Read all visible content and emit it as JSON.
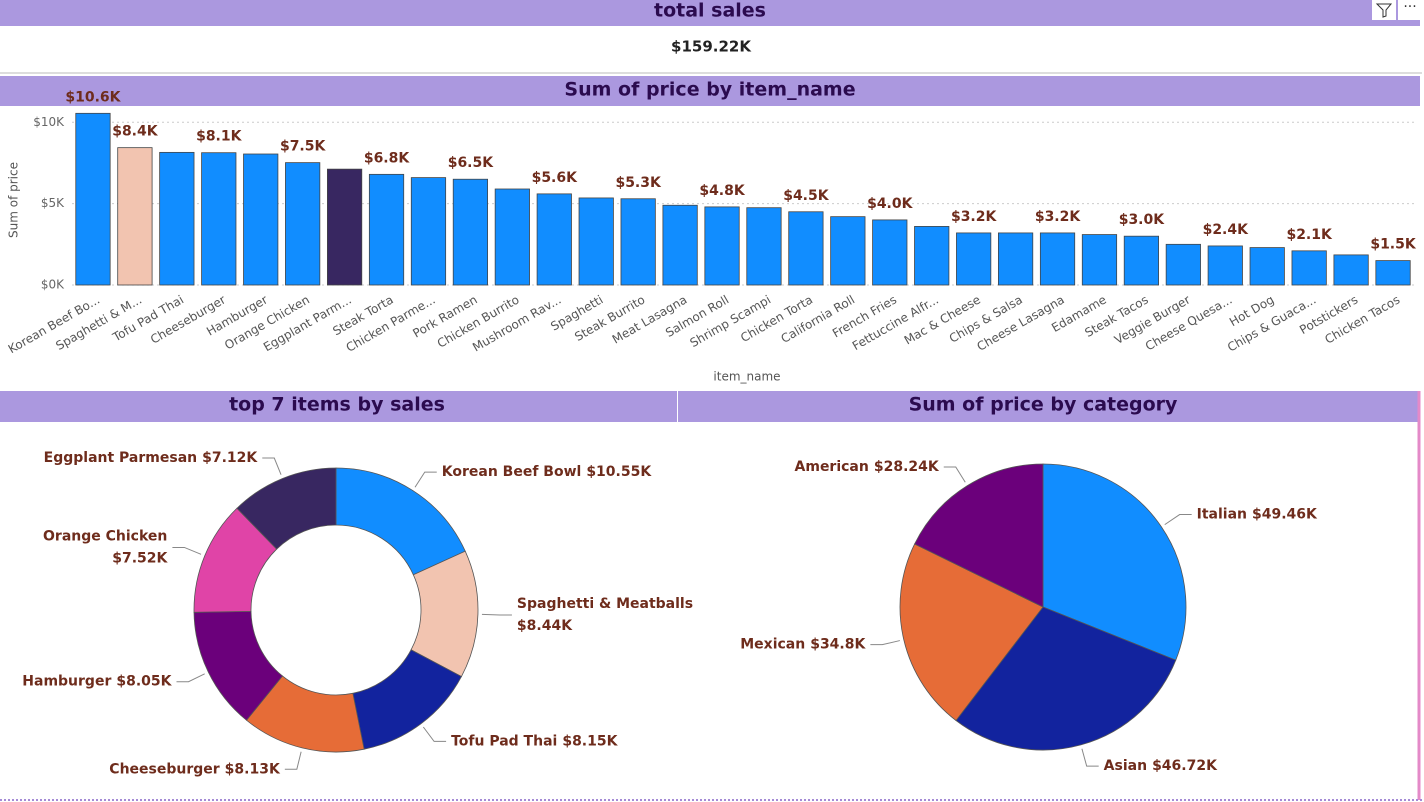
{
  "chart_data": [
    {
      "type": "card",
      "title": "total sales",
      "values": [
        159220
      ],
      "value_labels": [
        "$159.22K"
      ]
    },
    {
      "type": "bar",
      "title": "Sum of price by item_name",
      "x_label": "item_name",
      "y_label": "Sum of price",
      "categories": [
        "Korean Beef Bo...",
        "Spaghetti & M...",
        "Tofu Pad Thai",
        "Cheeseburger",
        "Hamburger",
        "Orange Chicken",
        "Eggplant Parm...",
        "Steak Torta",
        "Chicken Parme...",
        "Pork Ramen",
        "Chicken Burrito",
        "Mushroom Rav...",
        "Spaghetti",
        "Steak Burrito",
        "Meat Lasagna",
        "Salmon Roll",
        "Shrimp Scampi",
        "Chicken Torta",
        "California Roll",
        "French Fries",
        "Fettuccine Alfr...",
        "Mac & Cheese",
        "Chips & Salsa",
        "Cheese Lasagna",
        "Edamame",
        "Steak Tacos",
        "Veggie Burger",
        "Cheese Quesa...",
        "Hot Dog",
        "Chips & Guaca...",
        "Potstickers",
        "Chicken Tacos"
      ],
      "values": [
        10550,
        8440,
        8150,
        8130,
        8050,
        7520,
        7120,
        6800,
        6600,
        6500,
        5900,
        5600,
        5350,
        5300,
        4900,
        4800,
        4750,
        4500,
        4200,
        4000,
        3600,
        3200,
        3200,
        3200,
        3100,
        3000,
        2500,
        2400,
        2300,
        2100,
        1850,
        1500
      ],
      "value_labels": [
        "$10.6K",
        "$8.4K",
        null,
        "$8.1K",
        null,
        "$7.5K",
        null,
        "$6.8K",
        null,
        "$6.5K",
        null,
        "$5.6K",
        null,
        "$5.3K",
        null,
        "$4.8K",
        null,
        "$4.5K",
        null,
        "$4.0K",
        null,
        "$3.2K",
        null,
        "$3.2K",
        null,
        "$3.0K",
        null,
        "$2.4K",
        null,
        "$2.1K",
        null,
        "$1.5K"
      ],
      "color": "#118dff",
      "colors": [
        "#118dff",
        "#f2c4b0",
        "#118dff",
        "#118dff",
        "#118dff",
        "#118dff",
        "#382761",
        "#118dff",
        "#118dff",
        "#118dff",
        "#118dff",
        "#118dff",
        "#118dff",
        "#118dff",
        "#118dff",
        "#118dff",
        "#118dff",
        "#118dff",
        "#118dff",
        "#118dff",
        "#118dff",
        "#118dff",
        "#118dff",
        "#118dff",
        "#118dff",
        "#118dff",
        "#118dff",
        "#118dff",
        "#118dff",
        "#118dff",
        "#118dff",
        "#118dff"
      ],
      "ylim": [
        0,
        11000
      ],
      "yticks": [
        {
          "value": 0,
          "label": "$0K"
        },
        {
          "value": 5000,
          "label": "$5K"
        },
        {
          "value": 10000,
          "label": "$10K"
        }
      ],
      "grid": true
    },
    {
      "type": "donut",
      "title": "top 7 items by sales",
      "categories": [
        "Korean Beef Bowl",
        "Spaghetti & Meatballs",
        "Tofu Pad Thai",
        "Cheeseburger",
        "Hamburger",
        "Orange Chicken",
        "Eggplant Parmesan"
      ],
      "values": [
        10550,
        8440,
        8150,
        8130,
        8050,
        7520,
        7120
      ],
      "value_labels": [
        "$10.55K",
        "$8.44K",
        "$8.15K",
        "$8.13K",
        "$8.05K",
        "$7.52K",
        "$7.12K"
      ],
      "colors": [
        "#118dff",
        "#f2c4b0",
        "#12239e",
        "#e66c37",
        "#6b007b",
        "#e044a7",
        "#382761"
      ]
    },
    {
      "type": "pie",
      "title": "Sum of price by category",
      "categories": [
        "Italian",
        "Asian",
        "Mexican",
        "American"
      ],
      "values": [
        49460,
        46720,
        34800,
        28240
      ],
      "value_labels": [
        "$49.46K",
        "$46.72K",
        "$34.8K",
        "$28.24K"
      ],
      "colors": [
        "#118dff",
        "#12239e",
        "#e66c37",
        "#6b007b"
      ]
    }
  ]
}
